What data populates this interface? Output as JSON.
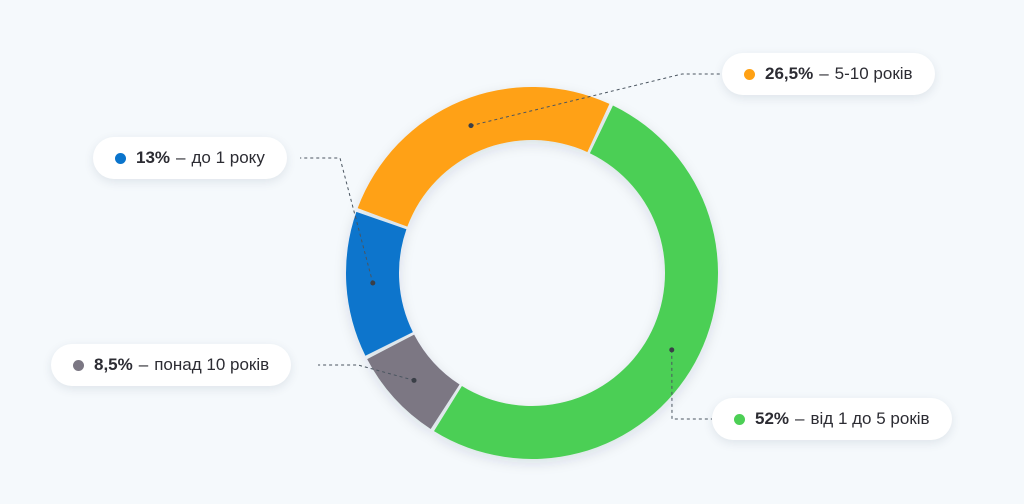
{
  "chart_data": {
    "type": "pie",
    "variant": "donut",
    "separator": "–",
    "slices": [
      {
        "value_label": "13%",
        "value": 13,
        "label": "до 1 року",
        "color": "#0a74cc"
      },
      {
        "value_label": "26,5%",
        "value": 26.5,
        "label": "5-10 років",
        "color": "#ffa114"
      },
      {
        "value_label": "52%",
        "value": 52,
        "label": "від 1 до 5 років",
        "color": "#4ccf55"
      },
      {
        "value_label": "8,5%",
        "value": 8.5,
        "label": "понад 10 років",
        "color": "#7b7783"
      }
    ]
  }
}
